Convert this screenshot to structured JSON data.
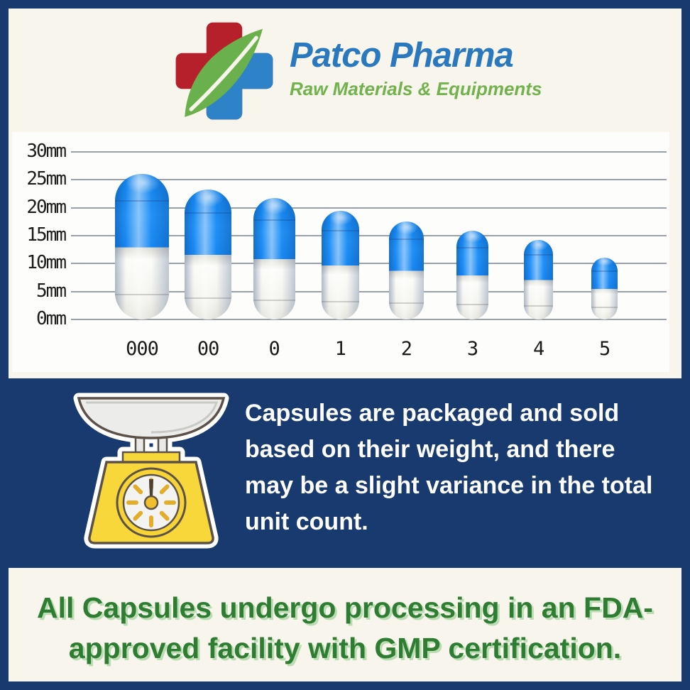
{
  "brand": {
    "name": "Patco Pharma",
    "tagline": "Raw Materials & Equipments",
    "logo_icon": "medical-cross-leaf-logo",
    "colors": {
      "name_blue": "#2a78be",
      "tagline_green": "#72b14e",
      "cross_red": "#b6202a",
      "cross_blue": "#2e83c8",
      "leaf_green": "#6ab04c"
    }
  },
  "chart_data": {
    "type": "bar",
    "subtype": "capsule-size-comparison",
    "title": "",
    "xlabel": "",
    "ylabel": "",
    "categories": [
      "000",
      "00",
      "0",
      "1",
      "2",
      "3",
      "4",
      "5"
    ],
    "values": [
      26.1,
      23.3,
      21.7,
      19.4,
      17.6,
      15.9,
      14.3,
      11.1
    ],
    "unit": "mm",
    "diameters_mm": [
      9.9,
      8.6,
      7.8,
      7.0,
      6.5,
      6.0,
      5.5,
      4.9
    ],
    "yticks": [
      "0mm",
      "5mm",
      "10mm",
      "15mm",
      "20mm",
      "25mm",
      "30mm"
    ],
    "ylim": [
      0,
      30
    ],
    "grid": true,
    "legend_position": "none",
    "cap_color": "#1787f2",
    "body_color": "#f5f5f1",
    "grid_color": "#99a0a7",
    "panel_color": "#fdfdfb"
  },
  "weight_note": {
    "icon": "weighing-scale-icon",
    "lines": [
      "Capsules are packaged and sold",
      "based on their weight, and there",
      "may be a slight variance in the total",
      "unit count."
    ],
    "text": "Capsules are packaged and sold based on their weight, and there may be a slight variance in the total unit count."
  },
  "footer_banner": {
    "lines": [
      "All Capsules undergo processing in an FDA-",
      "approved facility with GMP certification."
    ],
    "text": "All Capsules undergo processing in an FDA-approved facility with GMP certification."
  },
  "theme": {
    "navy": "#183a6e",
    "cream": "#f7f5ec",
    "panel_white": "#fdfdfb",
    "footer_green": "#2e7d32",
    "footer_shadow_green": "#bcdcb4",
    "scale_yellow": "#f8d73a",
    "text_white": "#fdfdfd"
  }
}
